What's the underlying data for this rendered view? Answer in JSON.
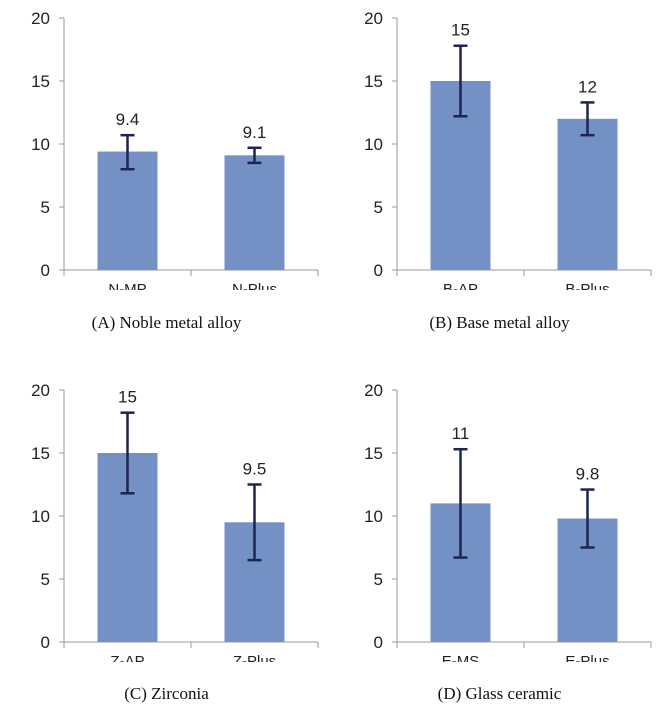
{
  "chart_data": [
    {
      "type": "bar",
      "caption": "(A) Noble metal alloy",
      "categories": [
        "N-MP",
        "N-Plus"
      ],
      "values": [
        9.4,
        9.1
      ],
      "data_labels": [
        "9.4",
        "9.1"
      ],
      "error_low": [
        8.0,
        8.5
      ],
      "error_high": [
        10.7,
        9.7
      ],
      "ylim": [
        0,
        20
      ],
      "yticks": [
        0,
        5,
        10,
        15,
        20
      ],
      "bar_color": "#7491C6",
      "error_color": "#1E2452"
    },
    {
      "type": "bar",
      "caption": "(B) Base metal alloy",
      "categories": [
        "B-AP",
        "B-Plus"
      ],
      "values": [
        15,
        12
      ],
      "data_labels": [
        "15",
        "12"
      ],
      "error_low": [
        12.2,
        10.7
      ],
      "error_high": [
        17.8,
        13.3
      ],
      "ylim": [
        0,
        20
      ],
      "yticks": [
        0,
        5,
        10,
        15,
        20
      ],
      "bar_color": "#7491C6",
      "error_color": "#1E2452"
    },
    {
      "type": "bar",
      "caption": "(C) Zirconia",
      "categories": [
        "Z-AP",
        "Z-Plus"
      ],
      "values": [
        15,
        9.5
      ],
      "data_labels": [
        "15",
        "9.5"
      ],
      "error_low": [
        11.8,
        6.5
      ],
      "error_high": [
        18.2,
        12.5
      ],
      "ylim": [
        0,
        20
      ],
      "yticks": [
        0,
        5,
        10,
        15,
        20
      ],
      "bar_color": "#7491C6",
      "error_color": "#1E2452"
    },
    {
      "type": "bar",
      "caption": "(D) Glass ceramic",
      "categories": [
        "E-MS",
        "E-Plus"
      ],
      "values": [
        11,
        9.8
      ],
      "data_labels": [
        "11",
        "9.8"
      ],
      "error_low": [
        6.7,
        7.5
      ],
      "error_high": [
        15.3,
        12.1
      ],
      "ylim": [
        0,
        20
      ],
      "yticks": [
        0,
        5,
        10,
        15,
        20
      ],
      "bar_color": "#7491C6",
      "error_color": "#1E2452"
    }
  ]
}
